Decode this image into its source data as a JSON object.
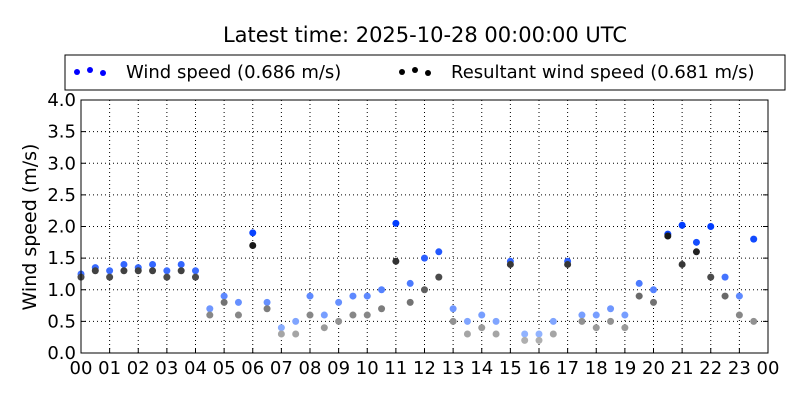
{
  "chart_data": {
    "type": "scatter",
    "title": "Latest time: 2025-10-28 00:00:00 UTC",
    "xlabel": "",
    "ylabel": "Wind speed (m/s)",
    "ylim": [
      0,
      4
    ],
    "yticks": [
      "0.0",
      "0.5",
      "1.0",
      "1.5",
      "2.0",
      "2.5",
      "3.0",
      "3.5",
      "4.0"
    ],
    "xticks": [
      "00",
      "01",
      "02",
      "03",
      "04",
      "05",
      "06",
      "07",
      "08",
      "09",
      "10",
      "11",
      "12",
      "13",
      "14",
      "15",
      "16",
      "17",
      "18",
      "19",
      "20",
      "21",
      "22",
      "23",
      "00"
    ],
    "xlim_hours": [
      0,
      24
    ],
    "grid": true,
    "legend_placement": "top",
    "x_hours": [
      0,
      0.5,
      1,
      1.5,
      2,
      2.5,
      3,
      3.5,
      4,
      4.5,
      5,
      5.5,
      6,
      6.5,
      7,
      7.5,
      8,
      8.5,
      9,
      9.5,
      10,
      10.5,
      11,
      11.5,
      12,
      12.5,
      13,
      13.5,
      14,
      14.5,
      15,
      15.5,
      16,
      16.5,
      17,
      17.5,
      18,
      18.5,
      19,
      19.5,
      20,
      20.5,
      21,
      21.5,
      22,
      22.5,
      23,
      23.5
    ],
    "series": [
      {
        "name": "Wind speed (0.686 m/s)",
        "color": "#0000ff",
        "values": [
          1.25,
          1.35,
          1.3,
          1.4,
          1.35,
          1.4,
          1.3,
          1.4,
          1.3,
          0.7,
          0.9,
          0.8,
          1.9,
          0.8,
          0.4,
          0.5,
          0.9,
          0.6,
          0.8,
          0.9,
          0.9,
          1.0,
          2.05,
          1.1,
          1.5,
          1.6,
          0.7,
          0.5,
          0.6,
          0.5,
          1.45,
          0.3,
          0.3,
          0.5,
          1.45,
          0.6,
          0.6,
          0.7,
          0.6,
          1.1,
          1.0,
          1.88,
          2.02,
          1.75,
          2.0,
          1.2,
          0.9,
          1.8
        ]
      },
      {
        "name": "Resultant wind speed (0.681 m/s)",
        "color": "#000000",
        "values": [
          1.2,
          1.3,
          1.2,
          1.3,
          1.3,
          1.3,
          1.2,
          1.3,
          1.2,
          0.6,
          0.8,
          0.6,
          1.7,
          0.7,
          0.3,
          0.3,
          0.6,
          0.4,
          0.5,
          0.6,
          0.6,
          0.7,
          1.45,
          0.8,
          1.0,
          1.2,
          0.5,
          0.3,
          0.4,
          0.3,
          1.4,
          0.2,
          0.2,
          0.3,
          1.4,
          0.5,
          0.4,
          0.5,
          0.4,
          0.9,
          0.8,
          1.85,
          1.4,
          1.6,
          1.2,
          0.9,
          0.6,
          0.5
        ]
      }
    ]
  }
}
